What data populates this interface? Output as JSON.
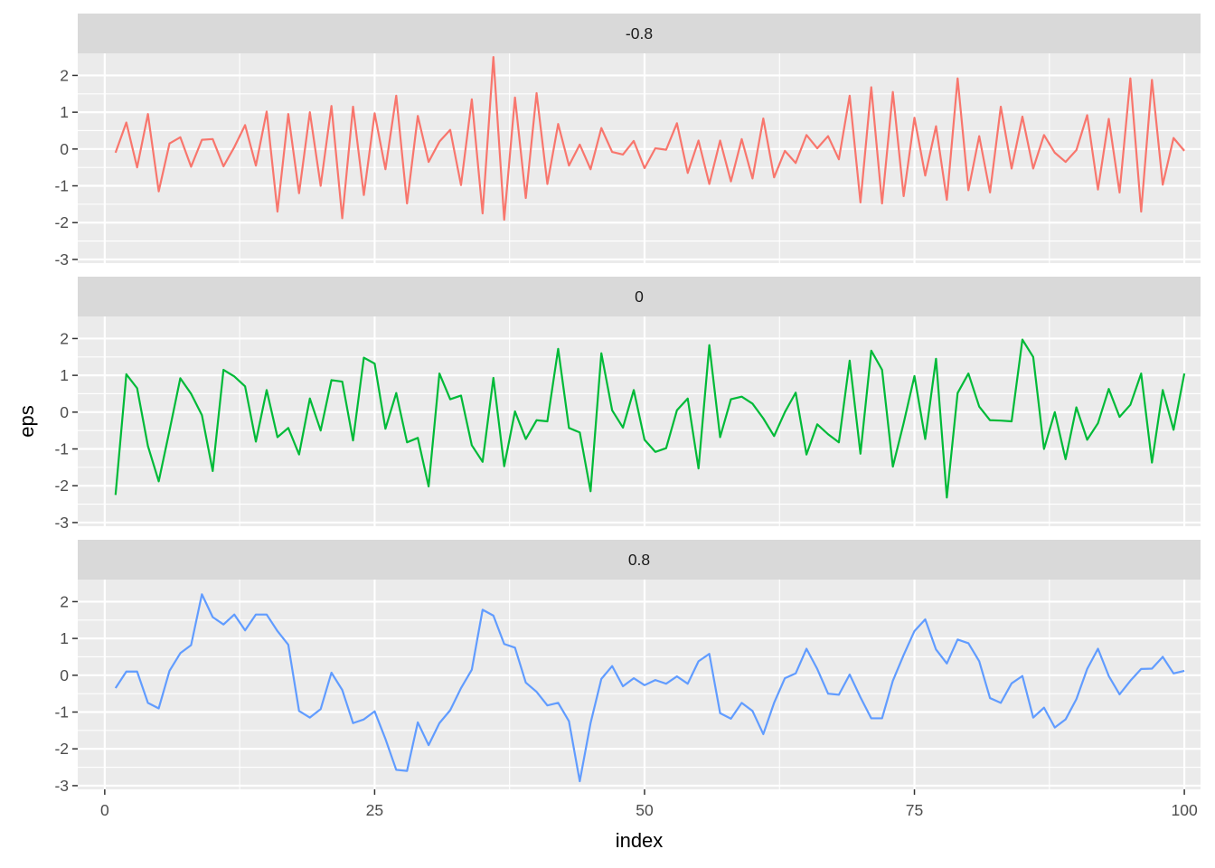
{
  "chart_data": {
    "type": "line",
    "xlabel": "index",
    "ylabel": "eps",
    "xlim": [
      -2.5,
      101.5
    ],
    "ylim": [
      -3.1,
      2.6
    ],
    "xticks": [
      0,
      25,
      50,
      75,
      100
    ],
    "yticks": [
      -3,
      -2,
      -1,
      0,
      1,
      2
    ],
    "grid": true,
    "legend": "none",
    "x": [
      1,
      2,
      3,
      4,
      5,
      6,
      7,
      8,
      9,
      10,
      11,
      12,
      13,
      14,
      15,
      16,
      17,
      18,
      19,
      20,
      21,
      22,
      23,
      24,
      25,
      26,
      27,
      28,
      29,
      30,
      31,
      32,
      33,
      34,
      35,
      36,
      37,
      38,
      39,
      40,
      41,
      42,
      43,
      44,
      45,
      46,
      47,
      48,
      49,
      50,
      51,
      52,
      53,
      54,
      55,
      56,
      57,
      58,
      59,
      60,
      61,
      62,
      63,
      64,
      65,
      66,
      67,
      68,
      69,
      70,
      71,
      72,
      73,
      74,
      75,
      76,
      77,
      78,
      79,
      80,
      81,
      82,
      83,
      84,
      85,
      86,
      87,
      88,
      89,
      90,
      91,
      92,
      93,
      94,
      95,
      96,
      97,
      98,
      99,
      100
    ],
    "series": [
      {
        "name": "-0.8",
        "color": "#F8766D",
        "values": [
          -0.1,
          0.72,
          -0.5,
          0.95,
          -1.15,
          0.15,
          0.32,
          -0.48,
          0.25,
          0.27,
          -0.47,
          0.05,
          0.65,
          -0.45,
          1.02,
          -1.7,
          0.95,
          -1.2,
          1.0,
          -1.0,
          1.17,
          -1.88,
          1.15,
          -1.25,
          0.97,
          -0.55,
          1.45,
          -1.48,
          0.9,
          -0.35,
          0.2,
          0.52,
          -0.98,
          1.35,
          -1.75,
          2.5,
          -1.92,
          1.4,
          -1.33,
          1.52,
          -0.95,
          0.68,
          -0.45,
          0.12,
          -0.55,
          0.57,
          -0.08,
          -0.15,
          0.22,
          -0.52,
          0.02,
          -0.02,
          0.7,
          -0.65,
          0.23,
          -0.95,
          0.23,
          -0.88,
          0.27,
          -0.8,
          0.83,
          -0.77,
          -0.05,
          -0.38,
          0.38,
          0.02,
          0.35,
          -0.28,
          1.45,
          -1.45,
          1.68,
          -1.48,
          1.55,
          -1.28,
          0.85,
          -0.72,
          0.62,
          -1.38,
          1.92,
          -1.12,
          0.35,
          -1.18,
          1.15,
          -0.53,
          0.88,
          -0.53,
          0.38,
          -0.1,
          -0.35,
          -0.03,
          0.92,
          -1.1,
          0.82,
          -1.18,
          1.92,
          -1.7,
          1.88,
          -0.97,
          0.3,
          -0.05
        ]
      },
      {
        "name": "0",
        "color": "#00BA38",
        "values": [
          -2.25,
          1.03,
          0.65,
          -0.92,
          -1.88,
          -0.5,
          0.92,
          0.5,
          -0.08,
          -1.6,
          1.15,
          0.97,
          0.7,
          -0.8,
          0.6,
          -0.68,
          -0.43,
          -1.15,
          0.37,
          -0.5,
          0.87,
          0.83,
          -0.77,
          1.48,
          1.32,
          -0.45,
          0.52,
          -0.82,
          -0.7,
          -2.02,
          1.05,
          0.35,
          0.45,
          -0.9,
          -1.35,
          0.93,
          -1.47,
          0.02,
          -0.73,
          -0.22,
          -0.25,
          1.72,
          -0.43,
          -0.55,
          -2.15,
          1.6,
          0.05,
          -0.42,
          0.6,
          -0.75,
          -1.08,
          -0.98,
          0.05,
          0.37,
          -1.53,
          1.82,
          -0.68,
          0.35,
          0.42,
          0.23,
          -0.17,
          -0.65,
          0.0,
          0.53,
          -1.15,
          -0.33,
          -0.6,
          -0.82,
          1.4,
          -1.13,
          1.67,
          1.15,
          -1.48,
          -0.3,
          0.98,
          -0.73,
          1.45,
          -2.32,
          0.52,
          1.05,
          0.15,
          -0.22,
          -0.23,
          -0.25,
          1.97,
          1.5,
          -1.0,
          0.0,
          -1.28,
          0.13,
          -0.75,
          -0.3,
          0.63,
          -0.13,
          0.2,
          1.05,
          -1.37,
          0.6,
          -0.48,
          1.05
        ]
      },
      {
        "name": "0.8",
        "color": "#619CFF",
        "values": [
          -0.35,
          0.1,
          0.1,
          -0.75,
          -0.9,
          0.12,
          0.6,
          0.82,
          2.2,
          1.58,
          1.38,
          1.65,
          1.22,
          1.65,
          1.65,
          1.2,
          0.83,
          -0.97,
          -1.15,
          -0.92,
          0.07,
          -0.4,
          -1.3,
          -1.2,
          -0.98,
          -1.73,
          -2.57,
          -2.6,
          -1.28,
          -1.9,
          -1.3,
          -0.95,
          -0.35,
          0.15,
          1.78,
          1.62,
          0.85,
          0.75,
          -0.2,
          -0.45,
          -0.82,
          -0.75,
          -1.25,
          -2.88,
          -1.3,
          -0.1,
          0.25,
          -0.3,
          -0.08,
          -0.27,
          -0.13,
          -0.23,
          -0.03,
          -0.23,
          0.38,
          0.58,
          -1.03,
          -1.18,
          -0.75,
          -0.97,
          -1.6,
          -0.75,
          -0.08,
          0.05,
          0.72,
          0.17,
          -0.5,
          -0.53,
          0.02,
          -0.6,
          -1.17,
          -1.17,
          -0.15,
          0.55,
          1.2,
          1.52,
          0.7,
          0.32,
          0.97,
          0.87,
          0.38,
          -0.62,
          -0.75,
          -0.22,
          -0.02,
          -1.15,
          -0.88,
          -1.42,
          -1.2,
          -0.65,
          0.17,
          0.72,
          -0.02,
          -0.52,
          -0.15,
          0.17,
          0.18,
          0.5,
          0.05,
          0.12
        ]
      }
    ]
  }
}
